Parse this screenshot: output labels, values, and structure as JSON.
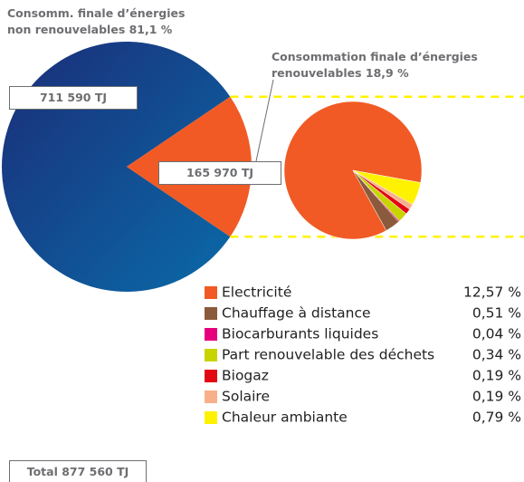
{
  "chart_data": [
    {
      "type": "pie",
      "categories": [
        "Consomm. finale d’énergies non renouvelables 81,1 %",
        "Consommation finale d’énergies renouvelables 18,9 %"
      ],
      "values": [
        711590,
        165970
      ],
      "value_labels": [
        "711 590 TJ",
        "165 970 TJ"
      ],
      "colors": [
        "#173f8c",
        "#f15a24"
      ],
      "annotation": "Total 877 560 TJ"
    },
    {
      "type": "pie",
      "categories": [
        "Electricité",
        "Chauffage à distance",
        "Biocarburants liquides",
        "Part renouvelable des déchets",
        "Biogaz",
        "Solaire",
        "Chaleur ambiante"
      ],
      "values": [
        12.57,
        0.51,
        0.04,
        0.34,
        0.19,
        0.19,
        0.79
      ],
      "value_labels": [
        "12,57 %",
        "0,51 %",
        "0,04 %",
        "0,34 %",
        "0,19 %",
        "0,19 %",
        "0,79 %"
      ],
      "colors": [
        "#f15a24",
        "#8b5a3c",
        "#e6007e",
        "#c8d400",
        "#e30613",
        "#f7b08a",
        "#fff200"
      ]
    }
  ]
}
